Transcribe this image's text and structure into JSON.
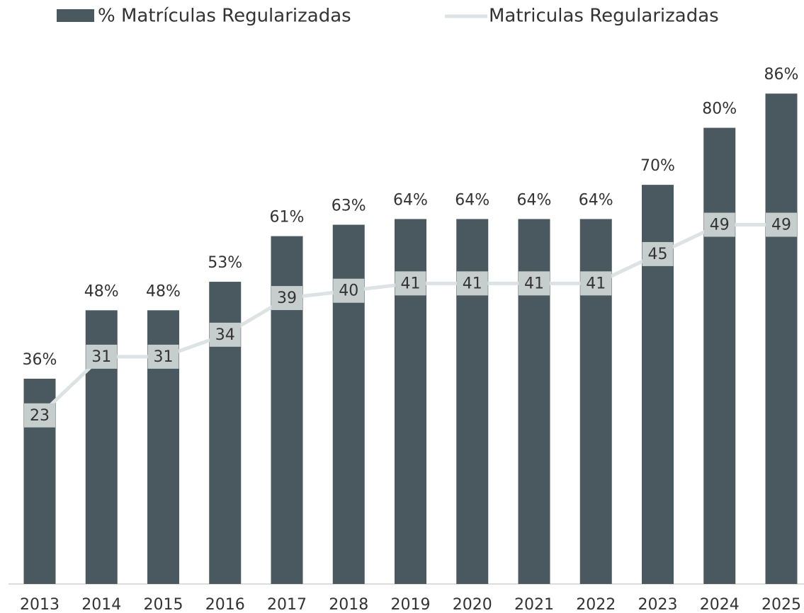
{
  "chart_data": {
    "type": "bar",
    "categories": [
      "2013",
      "2014",
      "2015",
      "2016",
      "2017",
      "2018",
      "2019",
      "2020",
      "2021",
      "2022",
      "2023",
      "2024",
      "2025"
    ],
    "series": [
      {
        "name": "% Matrículas Regularizadas",
        "type": "bar",
        "color": "#4a5860",
        "values": [
          36,
          48,
          48,
          53,
          61,
          63,
          64,
          64,
          64,
          64,
          70,
          80,
          86
        ],
        "value_labels": [
          "36%",
          "48%",
          "48%",
          "53%",
          "61%",
          "63%",
          "64%",
          "64%",
          "64%",
          "64%",
          "70%",
          "80%",
          "86%"
        ]
      },
      {
        "name": "Matriculas Regularizadas",
        "type": "line",
        "axis": "y2",
        "color": "#dde2e4",
        "values": [
          23,
          31,
          31,
          34,
          39,
          40,
          41,
          41,
          41,
          41,
          45,
          49,
          49
        ]
      }
    ],
    "ylim": [
      0,
      90
    ],
    "y2lim": [
      0,
      70
    ],
    "legend": "top"
  }
}
